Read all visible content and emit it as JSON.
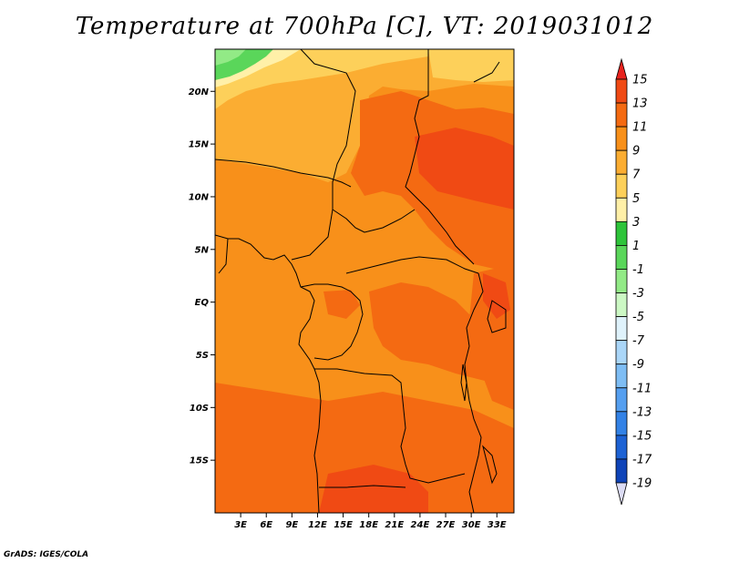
{
  "title": "Temperature at 700hPa [C], VT: 2019031012",
  "credit": "GrADS: IGES/COLA",
  "map": {
    "lon_range": [
      0,
      35
    ],
    "lat_range": [
      -20,
      24
    ],
    "lat_ticks": [
      {
        "label": "20N",
        "value": 20
      },
      {
        "label": "15N",
        "value": 15
      },
      {
        "label": "10N",
        "value": 10
      },
      {
        "label": "5N",
        "value": 5
      },
      {
        "label": "EQ",
        "value": 0
      },
      {
        "label": "5S",
        "value": -5
      },
      {
        "label": "10S",
        "value": -10
      },
      {
        "label": "15S",
        "value": -15
      }
    ],
    "lon_ticks": [
      {
        "label": "3E",
        "value": 3
      },
      {
        "label": "6E",
        "value": 6
      },
      {
        "label": "9E",
        "value": 9
      },
      {
        "label": "12E",
        "value": 12
      },
      {
        "label": "15E",
        "value": 15
      },
      {
        "label": "18E",
        "value": 18
      },
      {
        "label": "21E",
        "value": 21
      },
      {
        "label": "24E",
        "value": 24
      },
      {
        "label": "27E",
        "value": 27
      },
      {
        "label": "30E",
        "value": 30
      },
      {
        "label": "33E",
        "value": 33
      }
    ]
  },
  "colorbar": {
    "levels": [
      "15",
      "13",
      "11",
      "9",
      "7",
      "5",
      "3",
      "1",
      "-1",
      "-3",
      "-5",
      "-7",
      "-9",
      "-11",
      "-13",
      "-15",
      "-17",
      "-19"
    ],
    "colors": [
      "#e8231e",
      "#f04a14",
      "#f46a12",
      "#f8901a",
      "#fbad32",
      "#fdd05a",
      "#fff0a8",
      "#2ec43a",
      "#5ad65a",
      "#92ea86",
      "#ccf8c4",
      "#dff2fb",
      "#aad6f8",
      "#7ebdf4",
      "#559ff0",
      "#3382e6",
      "#1d62d4",
      "#0f44b8",
      "#0a1e78"
    ]
  }
}
